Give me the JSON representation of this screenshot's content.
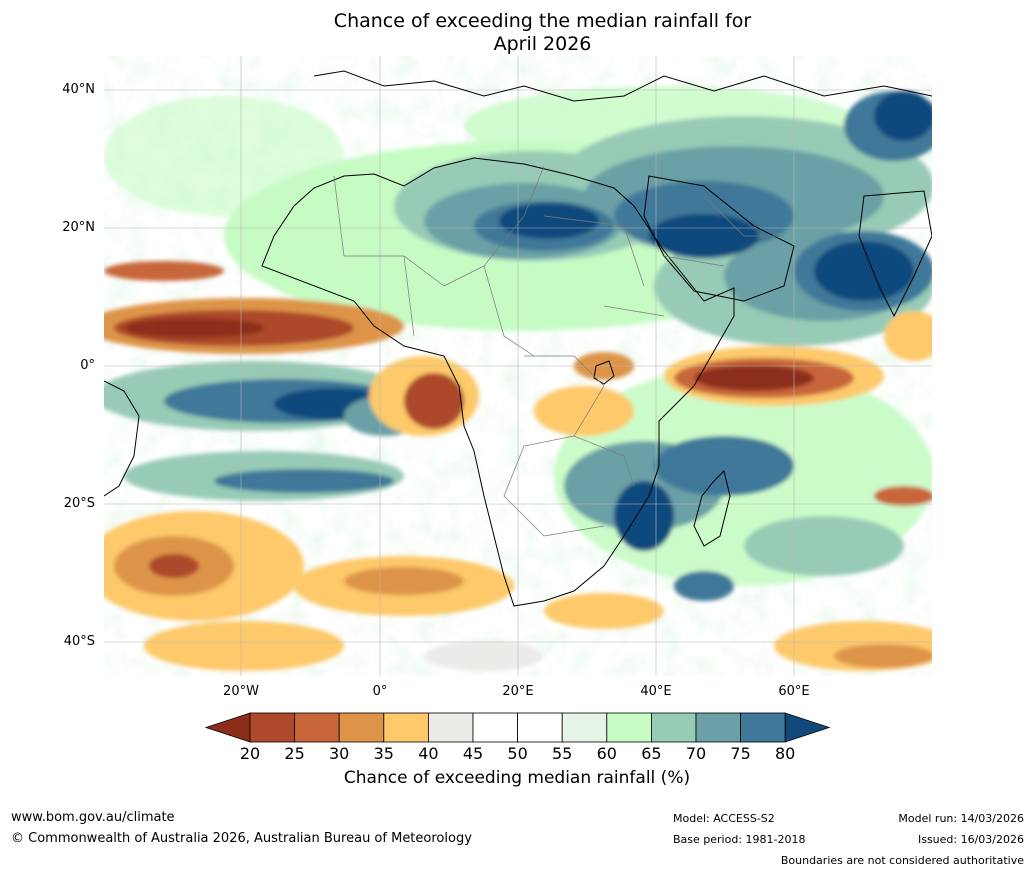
{
  "title_line1": "Chance of exceeding the median rainfall for",
  "title_line2": "April 2026",
  "lat_labels": [
    "40°N",
    "20°N",
    "0°",
    "20°S",
    "40°S"
  ],
  "lon_labels": [
    "20°W",
    "0°",
    "20°E",
    "40°E",
    "60°E"
  ],
  "colorbar": {
    "ticks": [
      "20",
      "25",
      "30",
      "35",
      "40",
      "45",
      "50",
      "55",
      "60",
      "65",
      "70",
      "75",
      "80"
    ],
    "colors": [
      "#8c2d1a",
      "#ac4a2a",
      "#c8663a",
      "#dd9448",
      "#fdc96b",
      "#edebe7",
      "#ffffff",
      "#ffffff",
      "#e6f4e6",
      "#c6fbc4",
      "#98cbb6",
      "#6aa0a6",
      "#3f7899",
      "#11497d"
    ],
    "label": "Chance of exceeding median rainfall (%)"
  },
  "footer": {
    "url": "www.bom.gov.au/climate",
    "copyright": "© Commonwealth of Australia 2026, Australian Bureau of Meteorology",
    "model": "Model: ACCESS-S2",
    "base_period": "Base period: 1981-2018",
    "model_run": "Model run: 14/03/2026",
    "issued": "Issued: 16/03/2026",
    "disclaimer": "Boundaries are not considered authoritative"
  }
}
